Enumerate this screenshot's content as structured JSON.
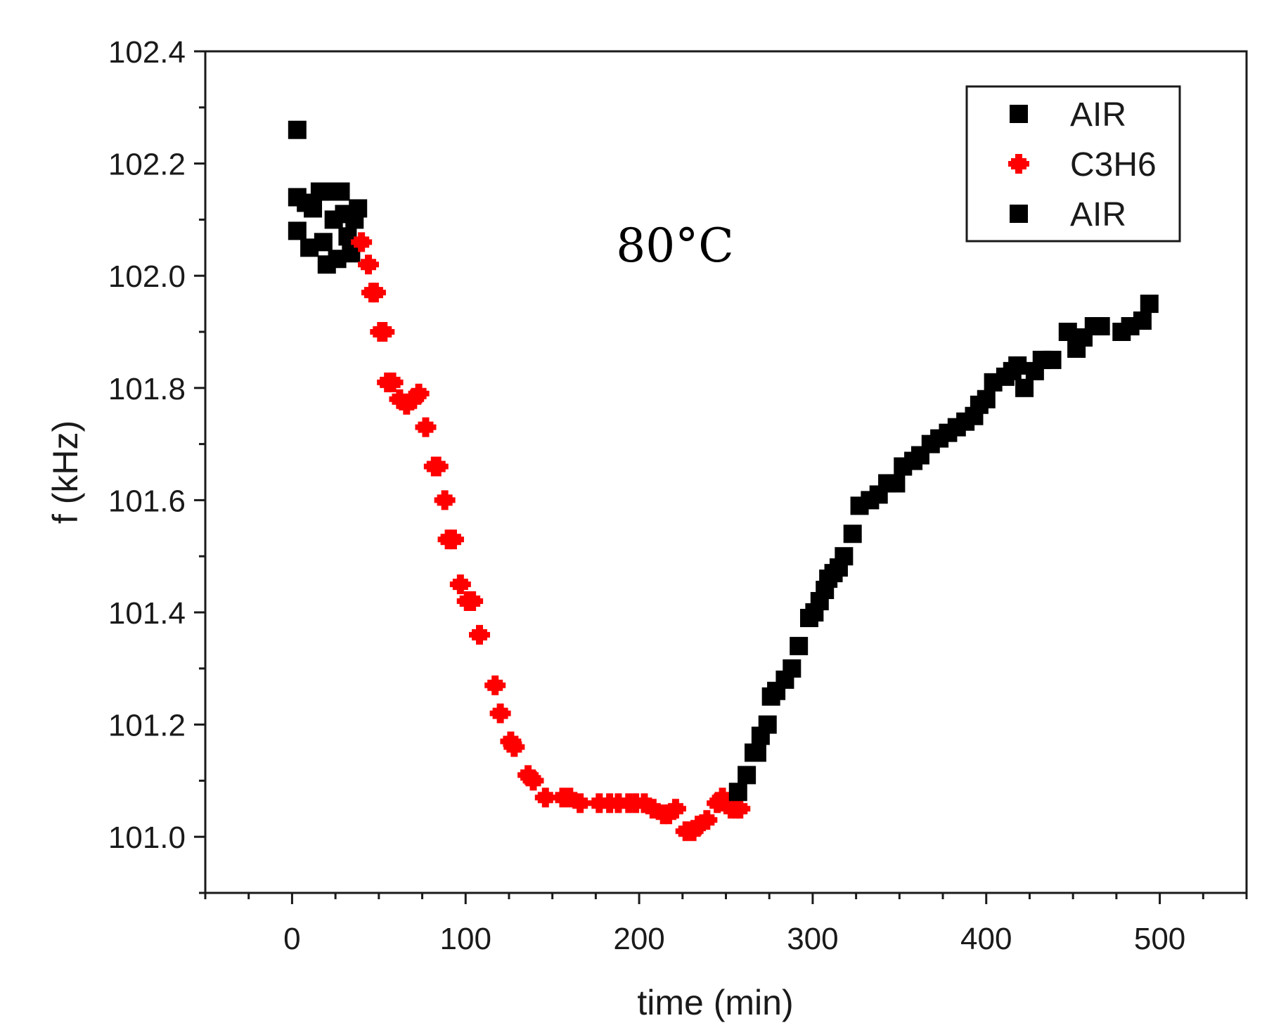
{
  "chart_data": {
    "type": "scatter",
    "title": "",
    "xlabel": "time (min)",
    "ylabel": "f (kHz)",
    "xlim": [
      -50,
      550
    ],
    "ylim": [
      100.9,
      102.4
    ],
    "xticks": [
      0,
      100,
      200,
      300,
      400,
      500
    ],
    "xtick_labels": [
      "0",
      "100",
      "200",
      "300",
      "400",
      "500"
    ],
    "yticks": [
      101.0,
      101.2,
      101.4,
      101.6,
      101.8,
      102.0,
      102.2,
      102.4
    ],
    "ytick_labels": [
      "101.0",
      "101.2",
      "101.4",
      "101.6",
      "101.8",
      "102.0",
      "102.2",
      "102.4"
    ],
    "grid": false,
    "legend_position": "top-right",
    "annotation": "80°C",
    "series": [
      {
        "name": "AIR",
        "marker": "square",
        "color": "#000000",
        "x": [
          3,
          3,
          3,
          8,
          10,
          12,
          16,
          18,
          20,
          22,
          24,
          26,
          28,
          30,
          32,
          34,
          36,
          38
        ],
        "y": [
          102.26,
          102.14,
          102.08,
          102.13,
          102.05,
          102.12,
          102.15,
          102.06,
          102.02,
          102.15,
          102.1,
          102.03,
          102.15,
          102.11,
          102.07,
          102.04,
          102.1,
          102.12
        ]
      },
      {
        "name": "C3H6",
        "marker": "circle",
        "color": "#ff0000",
        "x": [
          40,
          44,
          46,
          48,
          51,
          53,
          55,
          58,
          62,
          66,
          70,
          73,
          77,
          82,
          84,
          88,
          90,
          93,
          97,
          101,
          104,
          108,
          117,
          120,
          126,
          128,
          136,
          139,
          146,
          156,
          160,
          166,
          177,
          183,
          188,
          194,
          198,
          203,
          208,
          214,
          217,
          221,
          227,
          231,
          234,
          239,
          245,
          248,
          253,
          256,
          258
        ],
        "y": [
          102.06,
          102.02,
          101.97,
          101.97,
          101.9,
          101.9,
          101.81,
          101.81,
          101.78,
          101.77,
          101.78,
          101.79,
          101.73,
          101.66,
          101.66,
          101.6,
          101.53,
          101.53,
          101.45,
          101.42,
          101.42,
          101.36,
          101.27,
          101.22,
          101.17,
          101.16,
          101.11,
          101.1,
          101.07,
          101.07,
          101.07,
          101.06,
          101.06,
          101.06,
          101.06,
          101.06,
          101.06,
          101.06,
          101.05,
          101.04,
          101.04,
          101.05,
          101.01,
          101.01,
          101.02,
          101.03,
          101.06,
          101.07,
          101.05,
          101.05,
          101.05
        ]
      },
      {
        "name": "AIR",
        "marker": "square",
        "color": "#000000",
        "x": [
          257,
          262,
          266,
          268,
          270,
          274,
          276,
          279,
          284,
          288,
          292,
          298,
          301,
          304,
          307,
          309,
          312,
          315,
          318,
          323,
          327,
          333,
          338,
          343,
          348,
          352,
          358,
          362,
          368,
          373,
          378,
          383,
          388,
          393,
          396,
          400,
          404,
          411,
          415,
          418,
          422,
          428,
          432,
          438,
          447,
          452,
          456,
          462,
          466,
          478,
          483,
          490,
          494
        ],
        "y": [
          101.08,
          101.11,
          101.15,
          101.15,
          101.18,
          101.2,
          101.25,
          101.26,
          101.28,
          101.3,
          101.34,
          101.39,
          101.4,
          101.42,
          101.44,
          101.46,
          101.47,
          101.48,
          101.5,
          101.54,
          101.59,
          101.6,
          101.61,
          101.63,
          101.63,
          101.66,
          101.67,
          101.68,
          101.7,
          101.71,
          101.72,
          101.73,
          101.74,
          101.75,
          101.77,
          101.78,
          101.81,
          101.82,
          101.83,
          101.84,
          101.8,
          101.83,
          101.85,
          101.85,
          101.9,
          101.87,
          101.89,
          101.91,
          101.91,
          101.9,
          101.91,
          101.92,
          101.95
        ]
      }
    ]
  }
}
